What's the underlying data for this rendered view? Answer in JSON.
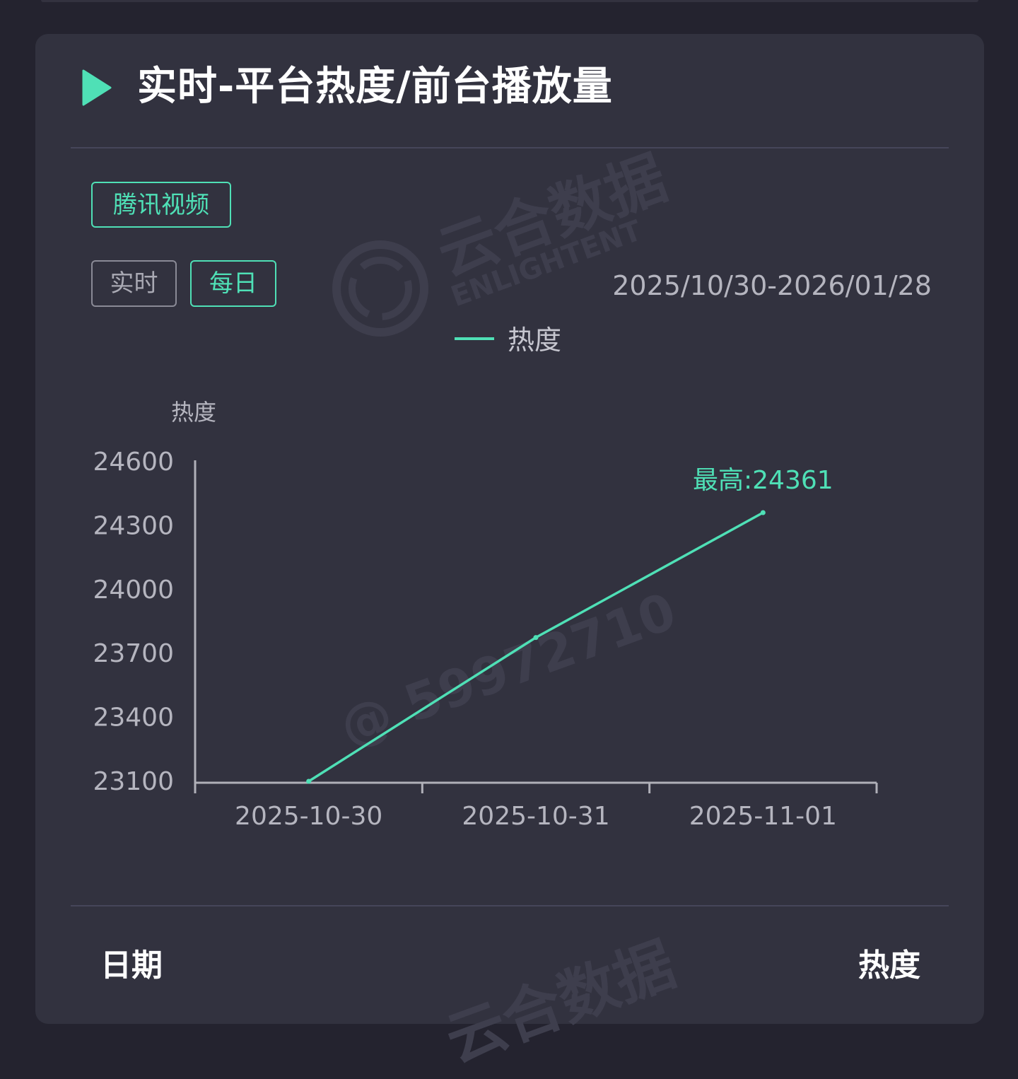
{
  "card": {
    "title": "实时-平台热度/前台播放量",
    "platform_tag": "腾讯视频",
    "mode_tabs": [
      "实时",
      "每日"
    ],
    "active_mode": "每日",
    "date_range": "2025/10/30-2026/01/28"
  },
  "watermarks": {
    "brand": "云合数据",
    "brand_en": "ENLIGHTENT",
    "user_id": "@ 59972710"
  },
  "colors": {
    "accent": "#4fe0b6",
    "background": "#24232f",
    "card": "#32323f",
    "axis": "#b0b0b8"
  },
  "icons": {
    "title_icon": "play-icon"
  },
  "chart_data": {
    "type": "line",
    "legend": "热度",
    "legend_position": "top-center",
    "ylabel": "热度",
    "categories": [
      "2025-10-30",
      "2025-10-31",
      "2025-11-01"
    ],
    "series": [
      {
        "name": "热度",
        "values": [
          23100,
          23775,
          24361
        ]
      }
    ],
    "ylim": [
      23100,
      24600
    ],
    "yticks": [
      "24600",
      "24300",
      "24000",
      "23700",
      "23400",
      "23100"
    ],
    "grid": false,
    "max_label": "最高:24361"
  },
  "table": {
    "headers": [
      "日期",
      "热度"
    ]
  }
}
